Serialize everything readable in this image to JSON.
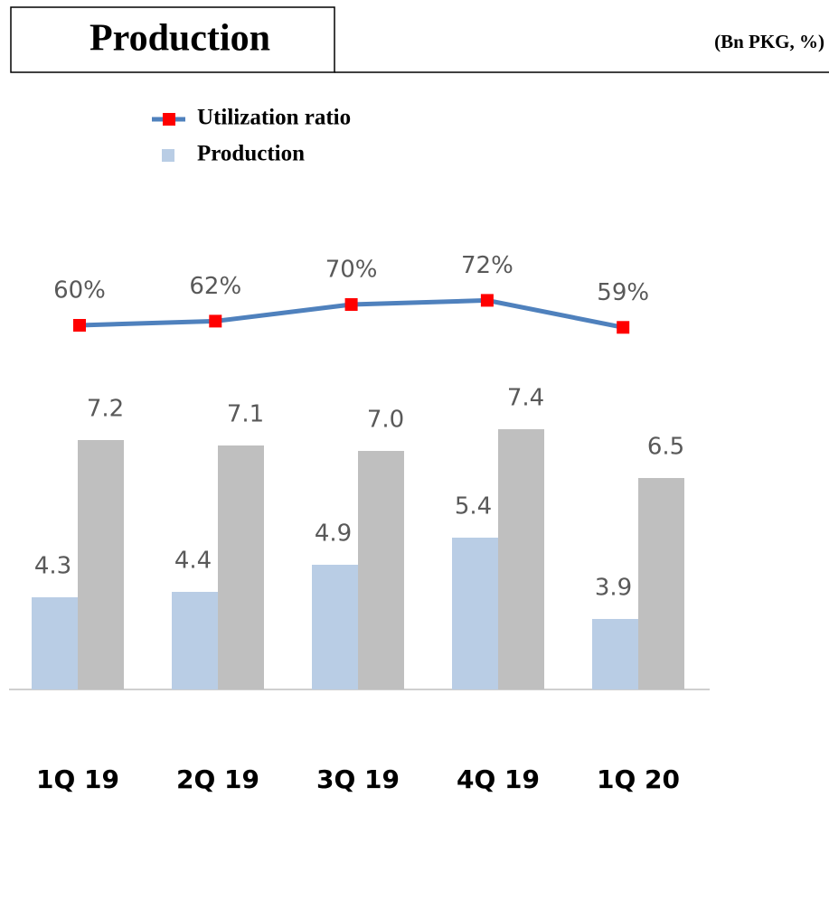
{
  "chart_data": {
    "type": "bar_line",
    "title": "Production",
    "subtitle": "(Bn PKG, %)",
    "categories": [
      "1Q 19",
      "2Q 19",
      "3Q 19",
      "4Q 19",
      "1Q 20"
    ],
    "ylim": [
      2.6,
      8
    ],
    "y2lim": [
      0,
      100
    ],
    "series": [
      {
        "name": "Utilization ratio",
        "type": "line",
        "axis": "y2",
        "color": "#4f81bd",
        "marker_color": "#ff0000",
        "values": [
          60,
          62,
          70,
          72,
          59
        ],
        "value_labels": [
          "60%",
          "62%",
          "70%",
          "72%",
          "59%"
        ]
      },
      {
        "name": "Production",
        "type": "bar",
        "color": "#b9cde5",
        "values": [
          4.3,
          4.4,
          4.9,
          5.4,
          3.9
        ],
        "value_labels": [
          "4.3",
          "4.4",
          "4.9",
          "5.4",
          "3.9"
        ]
      },
      {
        "type": "bar",
        "color": "#bfbfbf",
        "values": [
          7.2,
          7.1,
          7.0,
          7.4,
          6.5
        ],
        "value_labels": [
          "7.2",
          "7.1",
          "7.0",
          "7.4",
          "6.5"
        ]
      }
    ]
  }
}
